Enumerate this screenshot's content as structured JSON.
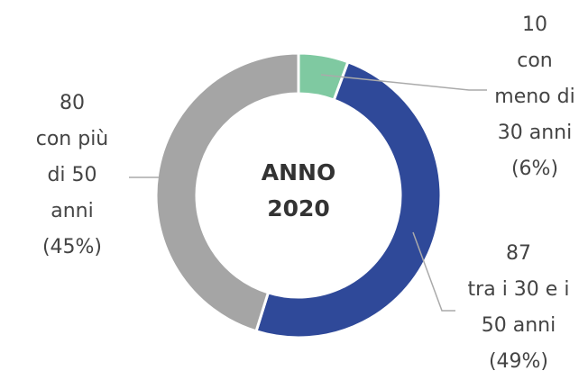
{
  "chart_data": {
    "type": "pie",
    "donut": true,
    "center_text": "ANNO 2020",
    "categories": [
      "con meno di 30 anni",
      "tra i 30 e i 50 anni",
      "con più di 50 anni"
    ],
    "values": [
      10,
      87,
      80
    ],
    "percent_labels": [
      "(6%)",
      "(49%)",
      "(45%)"
    ],
    "colors": [
      "#7fc9a1",
      "#2f4999",
      "#a5a5a5"
    ]
  }
}
